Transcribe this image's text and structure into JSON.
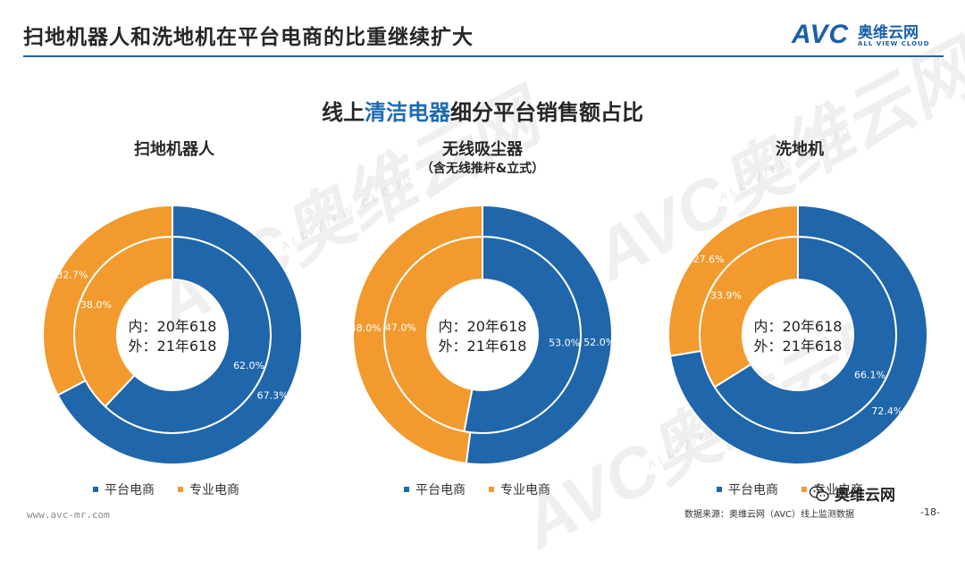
{
  "header": {
    "title": "扫地机器人和洗地机在平台电商的比重继续扩大",
    "logo_avc": "AVC",
    "logo_cn": "奥维云网",
    "logo_en": "ALL VIEW CLOUD"
  },
  "main_title": {
    "before": "线上",
    "highlight": "清洁电器",
    "after": "细分平台销售额占比"
  },
  "watermark": {
    "big": "AVC奥维云网",
    "small": "ALL VIEW CLOUD"
  },
  "colors": {
    "platform": "#1f66ab",
    "professional": "#f29a2e",
    "accent": "#1b5fa8"
  },
  "legend": {
    "platform": "平台电商",
    "professional": "专业电商"
  },
  "center_label": {
    "line1": "内：20年618",
    "line2": "外：21年618"
  },
  "chart_data": [
    {
      "type": "pie",
      "title": "扫地机器人",
      "subtitle": "",
      "series": [
        {
          "name": "20年618",
          "ring": "inner",
          "values": [
            62.0,
            38.0
          ],
          "labels": [
            "62.0%",
            "38.0%"
          ]
        },
        {
          "name": "21年618",
          "ring": "outer",
          "values": [
            67.3,
            32.7
          ],
          "labels": [
            "67.3%",
            "32.7%"
          ]
        }
      ],
      "categories": [
        "平台电商",
        "专业电商"
      ]
    },
    {
      "type": "pie",
      "title": "无线吸尘器",
      "subtitle": "（含无线推杆&立式）",
      "series": [
        {
          "name": "20年618",
          "ring": "inner",
          "values": [
            53.0,
            47.0
          ],
          "labels": [
            "53.0%",
            "47.0%"
          ]
        },
        {
          "name": "21年618",
          "ring": "outer",
          "values": [
            52.0,
            48.0
          ],
          "labels": [
            "52.0%",
            "48.0%"
          ]
        }
      ],
      "categories": [
        "平台电商",
        "专业电商"
      ]
    },
    {
      "type": "pie",
      "title": "洗地机",
      "subtitle": "",
      "series": [
        {
          "name": "20年618",
          "ring": "inner",
          "values": [
            66.1,
            33.9
          ],
          "labels": [
            "66.1%",
            "33.9%"
          ]
        },
        {
          "name": "21年618",
          "ring": "outer",
          "values": [
            72.4,
            27.6
          ],
          "labels": [
            "72.4%",
            "27.6%"
          ]
        }
      ],
      "categories": [
        "平台电商",
        "专业电商"
      ]
    }
  ],
  "footer": {
    "url": "www.avc-mr.com",
    "source": "数据来源：奥维云网（AVC）线上监测数据",
    "page": "-18-",
    "wechat": "奥维云网"
  }
}
